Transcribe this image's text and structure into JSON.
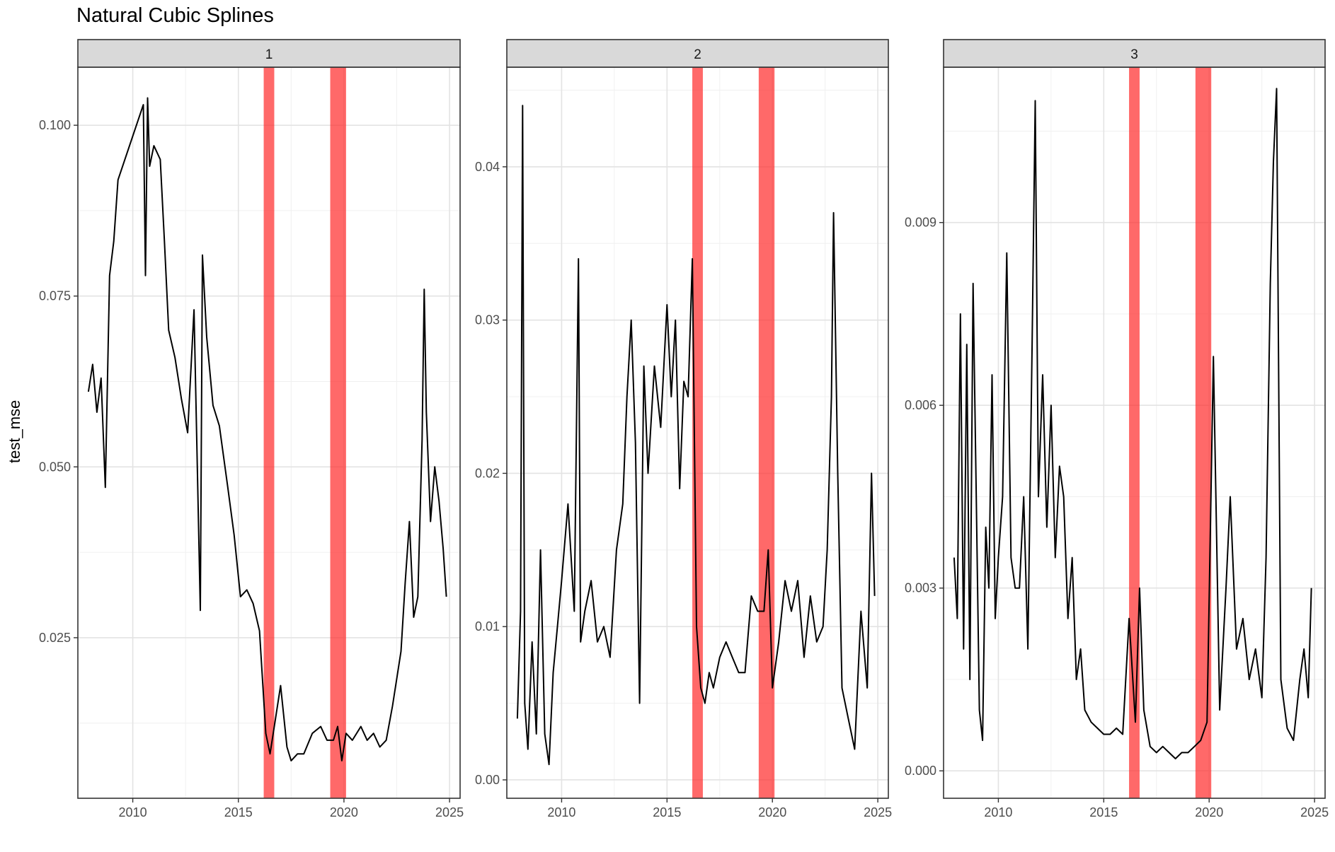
{
  "chart_data": {
    "type": "line",
    "title": "Natural Cubic Splines",
    "ylabel": "test_mse",
    "xlabel": "",
    "x_ticks": [
      2010,
      2015,
      2020,
      2025
    ],
    "xlim": [
      2007.4,
      2025.5
    ],
    "grid": true,
    "legend": "none",
    "line_color": "#000000",
    "band_color": "#ff2a2a",
    "bands": [
      [
        2016.2,
        2016.7
      ],
      [
        2019.35,
        2020.1
      ]
    ],
    "panels": [
      {
        "strip_label": "1",
        "ylim": [
          0.0015,
          0.1085
        ],
        "y_ticks": [
          0.025,
          0.05,
          0.075,
          0.1
        ],
        "y_tick_labels": [
          "0.025",
          "0.050",
          "0.075",
          "0.100"
        ],
        "x": [
          2007.9,
          2008.1,
          2008.3,
          2008.5,
          2008.7,
          2008.9,
          2009.1,
          2009.3,
          2010.5,
          2010.6,
          2010.7,
          2010.8,
          2011.0,
          2011.3,
          2011.5,
          2011.7,
          2012.0,
          2012.3,
          2012.6,
          2012.9,
          2013.2,
          2013.3,
          2013.5,
          2013.8,
          2014.1,
          2014.5,
          2014.8,
          2015.1,
          2015.4,
          2015.7,
          2016.0,
          2016.3,
          2016.5,
          2016.7,
          2017.0,
          2017.3,
          2017.5,
          2017.8,
          2018.1,
          2018.5,
          2018.9,
          2019.2,
          2019.5,
          2019.7,
          2019.9,
          2020.1,
          2020.4,
          2020.8,
          2021.1,
          2021.4,
          2021.7,
          2022.0,
          2022.3,
          2022.5,
          2022.7,
          2022.9,
          2023.1,
          2023.3,
          2023.5,
          2023.7,
          2023.8,
          2023.9,
          2024.1,
          2024.3,
          2024.5,
          2024.7,
          2024.85
        ],
        "y": [
          0.061,
          0.065,
          0.058,
          0.063,
          0.047,
          0.078,
          0.083,
          0.092,
          0.103,
          0.078,
          0.104,
          0.094,
          0.097,
          0.095,
          0.083,
          0.07,
          0.066,
          0.06,
          0.055,
          0.073,
          0.029,
          0.081,
          0.069,
          0.059,
          0.056,
          0.047,
          0.04,
          0.031,
          0.032,
          0.03,
          0.026,
          0.011,
          0.008,
          0.012,
          0.018,
          0.009,
          0.007,
          0.008,
          0.008,
          0.011,
          0.012,
          0.01,
          0.01,
          0.012,
          0.007,
          0.011,
          0.01,
          0.012,
          0.01,
          0.011,
          0.009,
          0.01,
          0.015,
          0.019,
          0.023,
          0.033,
          0.042,
          0.028,
          0.031,
          0.054,
          0.076,
          0.058,
          0.042,
          0.05,
          0.045,
          0.038,
          0.031
        ]
      },
      {
        "strip_label": "2",
        "ylim": [
          -0.0012,
          0.0465
        ],
        "y_ticks": [
          0,
          0.01,
          0.02,
          0.03,
          0.04
        ],
        "y_tick_labels": [
          "0.00",
          "0.01",
          "0.02",
          "0.03",
          "0.04"
        ],
        "x": [
          2007.9,
          2008.05,
          2008.15,
          2008.25,
          2008.4,
          2008.6,
          2008.8,
          2009.0,
          2009.2,
          2009.4,
          2009.6,
          2009.8,
          2010.0,
          2010.3,
          2010.6,
          2010.8,
          2010.9,
          2011.1,
          2011.4,
          2011.7,
          2012.0,
          2012.3,
          2012.6,
          2012.9,
          2013.1,
          2013.3,
          2013.5,
          2013.7,
          2013.9,
          2014.1,
          2014.4,
          2014.7,
          2015.0,
          2015.2,
          2015.4,
          2015.6,
          2015.8,
          2016.0,
          2016.2,
          2016.4,
          2016.6,
          2016.8,
          2017.0,
          2017.2,
          2017.5,
          2017.8,
          2018.1,
          2018.4,
          2018.7,
          2019.0,
          2019.3,
          2019.6,
          2019.8,
          2020.0,
          2020.3,
          2020.6,
          2020.9,
          2021.2,
          2021.5,
          2021.8,
          2022.1,
          2022.4,
          2022.6,
          2022.8,
          2022.9,
          2023.1,
          2023.3,
          2023.6,
          2023.9,
          2024.2,
          2024.5,
          2024.7,
          2024.85
        ],
        "y": [
          0.004,
          0.011,
          0.044,
          0.005,
          0.002,
          0.009,
          0.003,
          0.015,
          0.003,
          0.001,
          0.007,
          0.01,
          0.013,
          0.018,
          0.011,
          0.034,
          0.009,
          0.011,
          0.013,
          0.009,
          0.01,
          0.008,
          0.015,
          0.018,
          0.025,
          0.03,
          0.022,
          0.005,
          0.027,
          0.02,
          0.027,
          0.023,
          0.031,
          0.025,
          0.03,
          0.019,
          0.026,
          0.025,
          0.034,
          0.01,
          0.006,
          0.005,
          0.007,
          0.006,
          0.008,
          0.009,
          0.008,
          0.007,
          0.007,
          0.012,
          0.011,
          0.011,
          0.015,
          0.006,
          0.009,
          0.013,
          0.011,
          0.013,
          0.008,
          0.012,
          0.009,
          0.01,
          0.015,
          0.025,
          0.037,
          0.02,
          0.006,
          0.004,
          0.002,
          0.011,
          0.006,
          0.02,
          0.012
        ]
      },
      {
        "strip_label": "3",
        "ylim": [
          -0.00045,
          0.01155
        ],
        "y_ticks": [
          0,
          0.003,
          0.006,
          0.009
        ],
        "y_tick_labels": [
          "0.000",
          "0.003",
          "0.006",
          "0.009"
        ],
        "x": [
          2007.9,
          2008.05,
          2008.2,
          2008.35,
          2008.5,
          2008.65,
          2008.8,
          2008.95,
          2009.1,
          2009.25,
          2009.4,
          2009.55,
          2009.7,
          2009.85,
          2010.0,
          2010.2,
          2010.4,
          2010.6,
          2010.8,
          2011.0,
          2011.2,
          2011.4,
          2011.6,
          2011.75,
          2011.9,
          2012.1,
          2012.3,
          2012.5,
          2012.7,
          2012.9,
          2013.1,
          2013.3,
          2013.5,
          2013.7,
          2013.9,
          2014.1,
          2014.4,
          2014.7,
          2015.0,
          2015.3,
          2015.6,
          2015.9,
          2016.2,
          2016.5,
          2016.7,
          2016.9,
          2017.2,
          2017.5,
          2017.8,
          2018.1,
          2018.4,
          2018.7,
          2019.0,
          2019.3,
          2019.6,
          2019.9,
          2020.2,
          2020.5,
          2020.8,
          2021.0,
          2021.3,
          2021.6,
          2021.9,
          2022.2,
          2022.5,
          2022.7,
          2022.9,
          2023.05,
          2023.2,
          2023.4,
          2023.7,
          2024.0,
          2024.3,
          2024.5,
          2024.7,
          2024.85
        ],
        "y": [
          0.0035,
          0.0025,
          0.0075,
          0.002,
          0.007,
          0.0015,
          0.008,
          0.0045,
          0.001,
          0.0005,
          0.004,
          0.003,
          0.0065,
          0.0025,
          0.0035,
          0.0045,
          0.0085,
          0.0035,
          0.003,
          0.003,
          0.0045,
          0.002,
          0.007,
          0.011,
          0.0045,
          0.0065,
          0.004,
          0.006,
          0.0035,
          0.005,
          0.0045,
          0.0025,
          0.0035,
          0.0015,
          0.002,
          0.001,
          0.0008,
          0.0007,
          0.0006,
          0.0006,
          0.0007,
          0.0006,
          0.0025,
          0.0008,
          0.003,
          0.001,
          0.0004,
          0.0003,
          0.0004,
          0.0003,
          0.0002,
          0.0003,
          0.0003,
          0.0004,
          0.0005,
          0.0008,
          0.0068,
          0.001,
          0.003,
          0.0045,
          0.002,
          0.0025,
          0.0015,
          0.002,
          0.0012,
          0.0035,
          0.008,
          0.01,
          0.0112,
          0.0015,
          0.0007,
          0.0005,
          0.0015,
          0.002,
          0.0012,
          0.003
        ]
      }
    ]
  }
}
